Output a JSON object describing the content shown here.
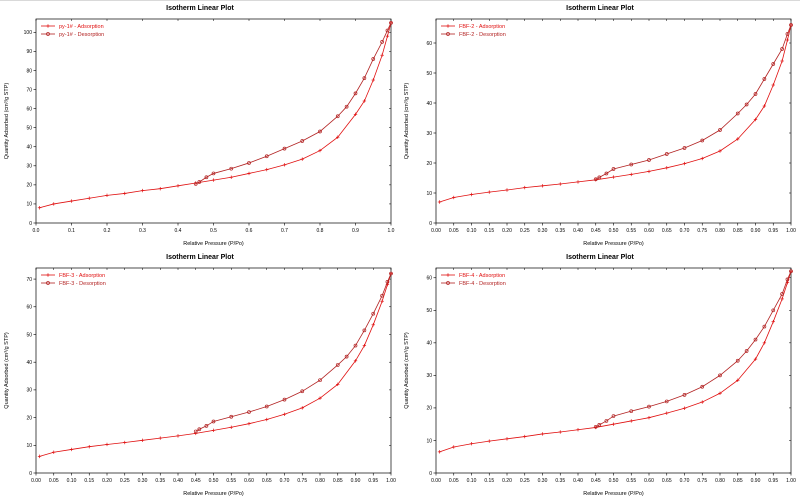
{
  "page": {
    "background": "#ffffff"
  },
  "chart_data": [
    {
      "type": "line",
      "title": "Isotherm Linear Plot",
      "xlabel": "Relative Pressure (P/Po)",
      "ylabel": "Quantity Adsorbed (cm³/g STP)",
      "sample": "py-1#",
      "xlim": [
        0.0,
        1.0
      ],
      "ylim": [
        0,
        107
      ],
      "x_ticks": [
        0.0,
        0.1,
        0.2,
        0.3,
        0.4,
        0.5,
        0.6,
        0.7,
        0.8,
        0.9,
        1.0
      ],
      "x_tick_decimals": 1,
      "y_ticks": [
        0,
        10,
        20,
        30,
        40,
        50,
        60,
        70,
        80,
        90,
        100
      ],
      "grid": false,
      "legend_position": "top-left",
      "series": [
        {
          "name": "py-1# - Adsorption",
          "marker": "plus",
          "color": "#e01010",
          "x": [
            0.01,
            0.05,
            0.1,
            0.15,
            0.2,
            0.25,
            0.3,
            0.35,
            0.4,
            0.45,
            0.5,
            0.55,
            0.6,
            0.65,
            0.7,
            0.75,
            0.8,
            0.85,
            0.9,
            0.925,
            0.95,
            0.975,
            0.99,
            1.0
          ],
          "y": [
            8,
            10,
            11.5,
            13,
            14.5,
            15.5,
            17,
            18,
            19.5,
            21,
            22.5,
            24,
            26,
            28,
            30.5,
            33.5,
            38,
            45,
            57,
            64,
            75,
            88,
            98,
            105
          ]
        },
        {
          "name": "py-1# - Desorption",
          "marker": "circle",
          "color": "#b22222",
          "x": [
            1.0,
            0.99,
            0.975,
            0.95,
            0.925,
            0.9,
            0.875,
            0.85,
            0.8,
            0.75,
            0.7,
            0.65,
            0.6,
            0.55,
            0.5,
            0.48,
            0.46,
            0.45
          ],
          "y": [
            105,
            101,
            95,
            86,
            76,
            68,
            61,
            56,
            48,
            43,
            39,
            35,
            31.5,
            28.5,
            26,
            24,
            21.5,
            20.5
          ]
        }
      ]
    },
    {
      "type": "line",
      "title": "Isotherm Linear Plot",
      "xlabel": "Relative Pressure (P/Po)",
      "ylabel": "Quantity Adsorbed (cm³/g STP)",
      "sample": "FBF-2",
      "xlim": [
        0.0,
        1.0
      ],
      "ylim": [
        0,
        68
      ],
      "x_ticks": [
        0.0,
        0.05,
        0.1,
        0.15,
        0.2,
        0.25,
        0.3,
        0.35,
        0.4,
        0.45,
        0.5,
        0.55,
        0.6,
        0.65,
        0.7,
        0.75,
        0.8,
        0.85,
        0.9,
        0.95,
        1.0
      ],
      "x_tick_decimals": 2,
      "y_ticks": [
        0,
        10,
        20,
        30,
        40,
        50,
        60
      ],
      "grid": false,
      "legend_position": "top-left",
      "series": [
        {
          "name": "FBF-2 - Adsorption",
          "marker": "plus",
          "color": "#e01010",
          "x": [
            0.01,
            0.05,
            0.1,
            0.15,
            0.2,
            0.25,
            0.3,
            0.35,
            0.4,
            0.45,
            0.5,
            0.55,
            0.6,
            0.65,
            0.7,
            0.75,
            0.8,
            0.85,
            0.9,
            0.925,
            0.95,
            0.975,
            0.99,
            1.0
          ],
          "y": [
            7,
            8.5,
            9.5,
            10.3,
            11,
            11.8,
            12.4,
            13,
            13.7,
            14.4,
            15.3,
            16.2,
            17.2,
            18.4,
            19.8,
            21.5,
            24,
            28,
            34.5,
            39,
            46,
            54,
            61,
            66
          ]
        },
        {
          "name": "FBF-2 - Desorption",
          "marker": "circle",
          "color": "#b22222",
          "x": [
            1.0,
            0.99,
            0.975,
            0.95,
            0.925,
            0.9,
            0.875,
            0.85,
            0.8,
            0.75,
            0.7,
            0.65,
            0.6,
            0.55,
            0.5,
            0.48,
            0.46,
            0.45
          ],
          "y": [
            66,
            63,
            58,
            53,
            48,
            43,
            39.5,
            36.5,
            31,
            27.5,
            25,
            23,
            21,
            19.5,
            18,
            16.5,
            15.2,
            14.6
          ]
        }
      ]
    },
    {
      "type": "line",
      "title": "Isotherm Linear Plot",
      "xlabel": "Relative Pressure (P/Po)",
      "ylabel": "Quantity Adsorbed (cm³/g STP)",
      "sample": "FBF-3",
      "xlim": [
        0.0,
        1.0
      ],
      "ylim": [
        0,
        74
      ],
      "x_ticks": [
        0.0,
        0.05,
        0.1,
        0.15,
        0.2,
        0.25,
        0.3,
        0.35,
        0.4,
        0.45,
        0.5,
        0.55,
        0.6,
        0.65,
        0.7,
        0.75,
        0.8,
        0.85,
        0.9,
        0.95,
        1.0
      ],
      "x_tick_decimals": 2,
      "y_ticks": [
        0,
        10,
        20,
        30,
        40,
        50,
        60,
        70
      ],
      "grid": false,
      "legend_position": "top-left",
      "series": [
        {
          "name": "FBF-3 - Adsorption",
          "marker": "plus",
          "color": "#e01010",
          "x": [
            0.01,
            0.05,
            0.1,
            0.15,
            0.2,
            0.25,
            0.3,
            0.35,
            0.4,
            0.45,
            0.5,
            0.55,
            0.6,
            0.65,
            0.7,
            0.75,
            0.8,
            0.85,
            0.9,
            0.925,
            0.95,
            0.975,
            0.99,
            1.0
          ],
          "y": [
            6,
            7.5,
            8.5,
            9.5,
            10.3,
            11,
            11.8,
            12.6,
            13.4,
            14.3,
            15.4,
            16.5,
            17.8,
            19.3,
            21.2,
            23.5,
            27,
            32,
            40.5,
            46,
            53.5,
            62,
            68,
            72
          ]
        },
        {
          "name": "FBF-3 - Desorption",
          "marker": "circle",
          "color": "#b22222",
          "x": [
            1.0,
            0.99,
            0.975,
            0.95,
            0.925,
            0.9,
            0.875,
            0.85,
            0.8,
            0.75,
            0.7,
            0.65,
            0.6,
            0.55,
            0.5,
            0.48,
            0.46,
            0.45
          ],
          "y": [
            72,
            69,
            64,
            57.5,
            51.5,
            46,
            42,
            39,
            33.5,
            29.5,
            26.5,
            24,
            22,
            20.3,
            18.6,
            17,
            15.8,
            15
          ]
        }
      ]
    },
    {
      "type": "line",
      "title": "Isotherm Linear Plot",
      "xlabel": "Relative Pressure (P/Po)",
      "ylabel": "Quantity Adsorbed (cm³/g STP)",
      "sample": "FBF-4",
      "xlim": [
        0.0,
        1.0
      ],
      "ylim": [
        0,
        63
      ],
      "x_ticks": [
        0.0,
        0.05,
        0.1,
        0.15,
        0.2,
        0.25,
        0.3,
        0.35,
        0.4,
        0.45,
        0.5,
        0.55,
        0.6,
        0.65,
        0.7,
        0.75,
        0.8,
        0.85,
        0.9,
        0.95,
        1.0
      ],
      "x_tick_decimals": 2,
      "y_ticks": [
        0,
        10,
        20,
        30,
        40,
        50,
        60
      ],
      "grid": false,
      "legend_position": "top-left",
      "series": [
        {
          "name": "FBF-4 - Adsorption",
          "marker": "plus",
          "color": "#e01010",
          "x": [
            0.01,
            0.05,
            0.1,
            0.15,
            0.2,
            0.25,
            0.3,
            0.35,
            0.4,
            0.45,
            0.5,
            0.55,
            0.6,
            0.65,
            0.7,
            0.75,
            0.8,
            0.85,
            0.9,
            0.925,
            0.95,
            0.975,
            0.99,
            1.0
          ],
          "y": [
            6.5,
            8,
            9,
            9.8,
            10.5,
            11.2,
            12,
            12.6,
            13.3,
            14,
            15,
            16,
            17,
            18.4,
            19.9,
            21.8,
            24.5,
            28.5,
            35,
            40,
            46.5,
            53.5,
            58.5,
            62
          ]
        },
        {
          "name": "FBF-4 - Desorption",
          "marker": "circle",
          "color": "#b22222",
          "x": [
            1.0,
            0.99,
            0.975,
            0.95,
            0.925,
            0.9,
            0.875,
            0.85,
            0.8,
            0.75,
            0.7,
            0.65,
            0.6,
            0.55,
            0.5,
            0.48,
            0.46,
            0.45
          ],
          "y": [
            62,
            59.5,
            55,
            50,
            45,
            41,
            37.5,
            34.5,
            30,
            26.5,
            24,
            22,
            20.4,
            19,
            17.5,
            16,
            14.8,
            14.2
          ]
        }
      ]
    }
  ]
}
